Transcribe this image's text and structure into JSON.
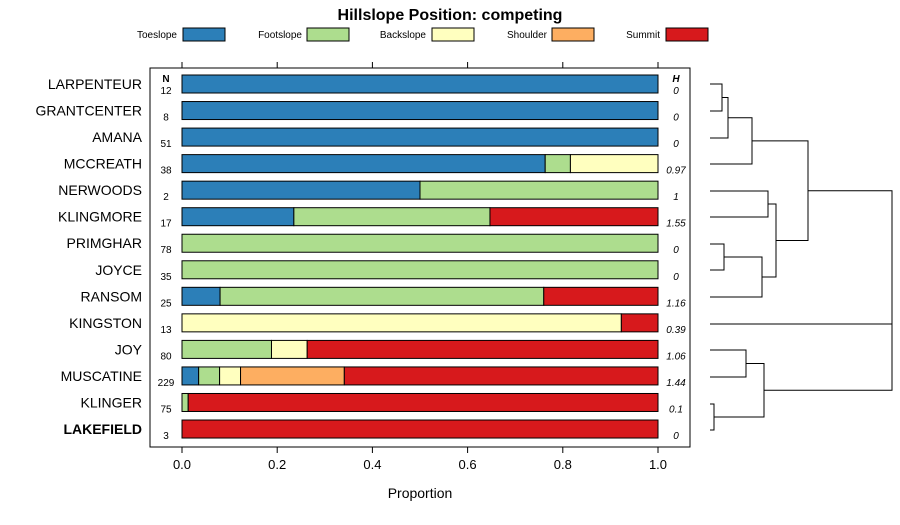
{
  "chart_data": {
    "type": "bar",
    "orientation": "horizontal-stacked",
    "title": "Hillslope Position: competing",
    "xlabel": "Proportion",
    "ylabel": "",
    "xlim": [
      0,
      1
    ],
    "x_ticks": [
      "0.0",
      "0.2",
      "0.4",
      "0.6",
      "0.8",
      "1.0"
    ],
    "n_header": "N",
    "h_header": "H",
    "legend": [
      {
        "name": "Toeslope",
        "color": "#2c7fb8"
      },
      {
        "name": "Footslope",
        "color": "#addd8e"
      },
      {
        "name": "Backslope",
        "color": "#ffffbf"
      },
      {
        "name": "Shoulder",
        "color": "#fdae61"
      },
      {
        "name": "Summit",
        "color": "#d7191c"
      }
    ],
    "rows": [
      {
        "label": "LARPENTEUR",
        "n": "12",
        "h": "0",
        "values": [
          1.0,
          0,
          0,
          0,
          0
        ]
      },
      {
        "label": "GRANTCENTER",
        "n": "8",
        "h": "0",
        "values": [
          1.0,
          0,
          0,
          0,
          0
        ]
      },
      {
        "label": "AMANA",
        "n": "51",
        "h": "0",
        "values": [
          1.0,
          0,
          0,
          0,
          0
        ]
      },
      {
        "label": "MCCREATH",
        "n": "38",
        "h": "0.97",
        "values": [
          0.763,
          0.053,
          0.184,
          0,
          0
        ]
      },
      {
        "label": "NERWOODS",
        "n": "2",
        "h": "1",
        "values": [
          0.5,
          0.5,
          0,
          0,
          0
        ]
      },
      {
        "label": "KLINGMORE",
        "n": "17",
        "h": "1.55",
        "values": [
          0.235,
          0.412,
          0,
          0,
          0.353
        ]
      },
      {
        "label": "PRIMGHAR",
        "n": "78",
        "h": "0",
        "values": [
          0,
          1.0,
          0,
          0,
          0
        ]
      },
      {
        "label": "JOYCE",
        "n": "35",
        "h": "0",
        "values": [
          0,
          1.0,
          0,
          0,
          0
        ]
      },
      {
        "label": "RANSOM",
        "n": "25",
        "h": "1.16",
        "values": [
          0.08,
          0.68,
          0,
          0,
          0.24
        ]
      },
      {
        "label": "KINGSTON",
        "n": "13",
        "h": "0.39",
        "values": [
          0,
          0,
          0.923,
          0,
          0.077
        ]
      },
      {
        "label": "JOY",
        "n": "80",
        "h": "1.06",
        "values": [
          0,
          0.188,
          0.075,
          0,
          0.737
        ]
      },
      {
        "label": "MUSCATINE",
        "n": "229",
        "h": "1.44",
        "values": [
          0.035,
          0.044,
          0.044,
          0.218,
          0.659
        ]
      },
      {
        "label": "KLINGER",
        "n": "75",
        "h": "0.1",
        "values": [
          0,
          0.013,
          0,
          0,
          0.987
        ]
      },
      {
        "label": "LAKEFIELD",
        "n": "3",
        "h": "0",
        "values": [
          0,
          0,
          0,
          0,
          1.0
        ],
        "bold": true
      }
    ],
    "dendrogram": "hierarchical clustering of series shown at right"
  }
}
